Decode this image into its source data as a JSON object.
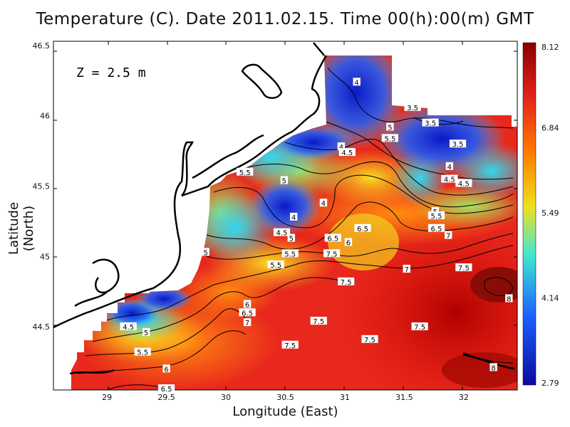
{
  "title": "Temperature (C). Date 2011.02.15. Time 00(h):00(m) GMT",
  "depth_label": "Z = 2.5 m",
  "xlabel": "Longitude (East)",
  "ylabel": "Latitude (North)",
  "colorbar": {
    "ticks": [
      "8.12",
      "6.84",
      "5.49",
      "4.14",
      "2.79"
    ],
    "colors": [
      "#8b0000",
      "#e0201a",
      "#ff7a00",
      "#f0e020",
      "#40e8d0",
      "#1a5fff",
      "#0a0aa0"
    ]
  },
  "chart_data": {
    "type": "heatmap",
    "title": "Temperature (C). Date 2011.02.15. Time 00(h):00(m) GMT",
    "xlabel": "Longitude (East)",
    "ylabel": "Latitude (North)",
    "x_ticks": [
      "29",
      "29.5",
      "30",
      "30.5",
      "31",
      "31.5",
      "32"
    ],
    "y_ticks": [
      "46.5",
      "46",
      "45.5",
      "45",
      "44.5"
    ],
    "xlim": [
      28.55,
      32.45
    ],
    "ylim": [
      44.05,
      46.53
    ],
    "value_range": [
      2.79,
      8.12
    ],
    "colorbar_ticks": [
      8.12,
      6.84,
      5.49,
      4.14,
      2.79
    ],
    "contour_labels": [
      {
        "text": "4",
        "lon": 31.1,
        "lat": 46.24
      },
      {
        "text": "3.5",
        "lon": 31.57,
        "lat": 46.06
      },
      {
        "text": "5",
        "lon": 31.38,
        "lat": 45.92
      },
      {
        "text": "3.5",
        "lon": 31.72,
        "lat": 45.95
      },
      {
        "text": "5.5",
        "lon": 31.38,
        "lat": 45.84
      },
      {
        "text": "4",
        "lon": 30.97,
        "lat": 45.78
      },
      {
        "text": "3.5",
        "lon": 31.95,
        "lat": 45.8
      },
      {
        "text": "4.5",
        "lon": 31.02,
        "lat": 45.74
      },
      {
        "text": "5.5",
        "lon": 30.16,
        "lat": 45.6
      },
      {
        "text": "4",
        "lon": 31.88,
        "lat": 45.64
      },
      {
        "text": "5",
        "lon": 30.49,
        "lat": 45.54
      },
      {
        "text": "4.5",
        "lon": 31.88,
        "lat": 45.55
      },
      {
        "text": "4.5",
        "lon": 32.0,
        "lat": 45.52
      },
      {
        "text": "4",
        "lon": 30.82,
        "lat": 45.38
      },
      {
        "text": "5",
        "lon": 31.76,
        "lat": 45.32
      },
      {
        "text": "5.5",
        "lon": 31.77,
        "lat": 45.29
      },
      {
        "text": "4",
        "lon": 30.57,
        "lat": 45.28
      },
      {
        "text": "6.5",
        "lon": 31.15,
        "lat": 45.2
      },
      {
        "text": "6.5",
        "lon": 31.77,
        "lat": 45.2
      },
      {
        "text": "4.5",
        "lon": 30.47,
        "lat": 45.17
      },
      {
        "text": "7",
        "lon": 31.87,
        "lat": 45.15
      },
      {
        "text": "5",
        "lon": 30.55,
        "lat": 45.13
      },
      {
        "text": "6.5",
        "lon": 30.9,
        "lat": 45.13
      },
      {
        "text": "6",
        "lon": 31.03,
        "lat": 45.1
      },
      {
        "text": "5",
        "lon": 29.83,
        "lat": 45.03
      },
      {
        "text": "5.5",
        "lon": 30.54,
        "lat": 45.02
      },
      {
        "text": "7.5",
        "lon": 30.89,
        "lat": 45.02
      },
      {
        "text": "5.5",
        "lon": 30.42,
        "lat": 44.94
      },
      {
        "text": "7",
        "lon": 31.52,
        "lat": 44.91
      },
      {
        "text": "7.5",
        "lon": 32.0,
        "lat": 44.92
      },
      {
        "text": "7.5",
        "lon": 31.01,
        "lat": 44.82
      },
      {
        "text": "8",
        "lon": 32.38,
        "lat": 44.7
      },
      {
        "text": "6",
        "lon": 30.18,
        "lat": 44.66
      },
      {
        "text": "6.5",
        "lon": 30.18,
        "lat": 44.6
      },
      {
        "text": "7",
        "lon": 30.18,
        "lat": 44.53
      },
      {
        "text": "7.5",
        "lon": 30.78,
        "lat": 44.54
      },
      {
        "text": "4.5",
        "lon": 29.18,
        "lat": 44.5
      },
      {
        "text": "7.5",
        "lon": 31.63,
        "lat": 44.5
      },
      {
        "text": "5",
        "lon": 29.33,
        "lat": 44.46
      },
      {
        "text": "7.5",
        "lon": 31.21,
        "lat": 44.41
      },
      {
        "text": "7.5",
        "lon": 30.54,
        "lat": 44.37
      },
      {
        "text": "5.5",
        "lon": 29.3,
        "lat": 44.32
      },
      {
        "text": "6",
        "lon": 29.5,
        "lat": 44.2
      },
      {
        "text": "8",
        "lon": 32.25,
        "lat": 44.21
      },
      {
        "text": "6.5",
        "lon": 29.5,
        "lat": 44.06
      }
    ]
  }
}
